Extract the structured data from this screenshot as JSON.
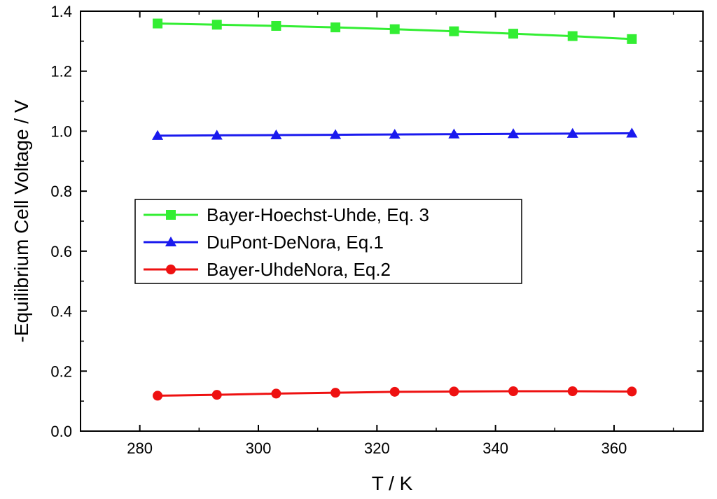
{
  "chart_data": {
    "type": "line",
    "title": "",
    "xlabel": "T / K",
    "ylabel": "-Equilibrium Cell Voltage / V",
    "xlim": [
      270,
      375
    ],
    "ylim": [
      0.0,
      1.4
    ],
    "xticks": [
      280,
      300,
      320,
      340,
      360
    ],
    "yticks": [
      0.0,
      0.2,
      0.4,
      0.6,
      0.8,
      1.0,
      1.2,
      1.4
    ],
    "xtick_labels": [
      "280",
      "300",
      "320",
      "340",
      "360"
    ],
    "ytick_labels": [
      "0.0",
      "0.2",
      "0.4",
      "0.6",
      "0.8",
      "1.0",
      "1.2",
      "1.4"
    ],
    "grid": false,
    "legend_position": "center-left",
    "x": [
      283,
      293,
      303,
      313,
      323,
      333,
      343,
      353,
      363
    ],
    "series": [
      {
        "name": "Bayer-Hoechst-Uhde, Eq. 3",
        "color": "#33ee33",
        "marker": "square",
        "values": [
          1.359,
          1.355,
          1.351,
          1.346,
          1.34,
          1.333,
          1.325,
          1.317,
          1.307
        ]
      },
      {
        "name": "DuPont-DeNora, Eq.1",
        "color": "#1a1aee",
        "marker": "triangle",
        "values": [
          0.985,
          0.986,
          0.987,
          0.988,
          0.989,
          0.99,
          0.991,
          0.992,
          0.993
        ]
      },
      {
        "name": "Bayer-UhdeNora, Eq.2",
        "color": "#ee1111",
        "marker": "circle",
        "values": [
          0.118,
          0.121,
          0.125,
          0.128,
          0.131,
          0.132,
          0.133,
          0.133,
          0.132
        ]
      }
    ]
  }
}
